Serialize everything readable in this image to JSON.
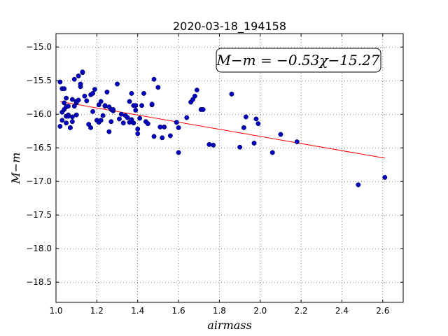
{
  "chart_data": {
    "type": "scatter",
    "title": "2020-03-18_194158",
    "xlabel": "airmass",
    "ylabel": "M−m",
    "xlim": [
      1.0,
      2.7
    ],
    "ylim": [
      -18.8,
      -14.8
    ],
    "y_inverted": true,
    "grid": true,
    "x_ticks": [
      1.0,
      1.2,
      1.4,
      1.6,
      1.8,
      2.0,
      2.2,
      2.4,
      2.6
    ],
    "x_tick_labels": [
      "1.0",
      "1.2",
      "1.4",
      "1.6",
      "1.8",
      "2.0",
      "2.2",
      "2.4",
      "2.6"
    ],
    "y_ticks": [
      -15.0,
      -15.5,
      -16.0,
      -16.5,
      -17.0,
      -17.5,
      -18.0,
      -18.5
    ],
    "y_tick_labels": [
      "−15.0",
      "−15.5",
      "−16.0",
      "−16.5",
      "−17.0",
      "−17.5",
      "−18.0",
      "−18.5"
    ],
    "annotation": "M−m = −0.53χ−15.27",
    "annotation_position": "top-right",
    "series": [
      {
        "kind": "points",
        "color": "#0000bf",
        "x": [
          1.02,
          1.02,
          1.03,
          1.03,
          1.03,
          1.04,
          1.04,
          1.04,
          1.05,
          1.05,
          1.05,
          1.05,
          1.06,
          1.06,
          1.06,
          1.07,
          1.07,
          1.08,
          1.08,
          1.08,
          1.09,
          1.09,
          1.1,
          1.1,
          1.1,
          1.1,
          1.11,
          1.11,
          1.12,
          1.12,
          1.13,
          1.13,
          1.14,
          1.15,
          1.16,
          1.17,
          1.17,
          1.18,
          1.18,
          1.19,
          1.2,
          1.21,
          1.21,
          1.22,
          1.22,
          1.23,
          1.24,
          1.24,
          1.25,
          1.26,
          1.26,
          1.27,
          1.27,
          1.28,
          1.28,
          1.3,
          1.31,
          1.32,
          1.33,
          1.34,
          1.35,
          1.36,
          1.36,
          1.37,
          1.37,
          1.38,
          1.38,
          1.39,
          1.39,
          1.4,
          1.4,
          1.41,
          1.42,
          1.43,
          1.44,
          1.45,
          1.47,
          1.47,
          1.48,
          1.48,
          1.5,
          1.51,
          1.52,
          1.53,
          1.56,
          1.59,
          1.6,
          1.6,
          1.64,
          1.66,
          1.67,
          1.68,
          1.69,
          1.71,
          1.72,
          1.75,
          1.77,
          1.86,
          1.9,
          1.92,
          1.93,
          1.97,
          1.98,
          1.99,
          2.06,
          2.1,
          2.18,
          2.48,
          2.61
        ],
        "y": [
          -16.18,
          -15.52,
          -15.97,
          -15.62,
          -16.09,
          -15.93,
          -15.62,
          -15.83,
          -16.03,
          -15.89,
          -16.13,
          -15.76,
          -15.88,
          -16.01,
          -16.03,
          -16.2,
          -16.2,
          -16.04,
          -16.11,
          -15.78,
          -15.48,
          -15.88,
          -16.01,
          -15.83,
          -15.81,
          -15.81,
          -15.43,
          -15.79,
          -15.59,
          -15.55,
          -15.38,
          -15.37,
          -15.73,
          -15.8,
          -16.15,
          -15.71,
          -16.2,
          -15.69,
          -15.96,
          -15.63,
          -16.09,
          -16.12,
          -15.86,
          -15.81,
          -16.09,
          -16.02,
          -15.88,
          -15.87,
          -15.67,
          -15.89,
          -16.26,
          -16.11,
          -15.93,
          -15.95,
          -15.93,
          -15.55,
          -16.07,
          -16.0,
          -16.13,
          -16.02,
          -16.05,
          -16.12,
          -15.81,
          -16.08,
          -15.69,
          -16.13,
          -15.87,
          -15.87,
          -15.94,
          -16.22,
          -16.29,
          -16.06,
          -15.87,
          -15.69,
          -16.11,
          -16.14,
          -15.86,
          -15.85,
          -15.48,
          -16.33,
          -15.6,
          -16.19,
          -16.35,
          -16.19,
          -16.32,
          -16.12,
          -16.2,
          -16.57,
          -16.05,
          -15.82,
          -15.78,
          -15.73,
          -15.64,
          -15.93,
          -15.93,
          -16.45,
          -16.46,
          -15.7,
          -16.49,
          -16.2,
          -16.04,
          -16.43,
          -16.07,
          -16.14,
          -16.57,
          -16.3,
          -16.41,
          -17.05,
          -16.94
        ]
      },
      {
        "kind": "fit-line",
        "color": "#ff0000",
        "x": [
          1.02,
          2.61
        ],
        "y": [
          -15.8106,
          -16.6533
        ]
      }
    ]
  }
}
